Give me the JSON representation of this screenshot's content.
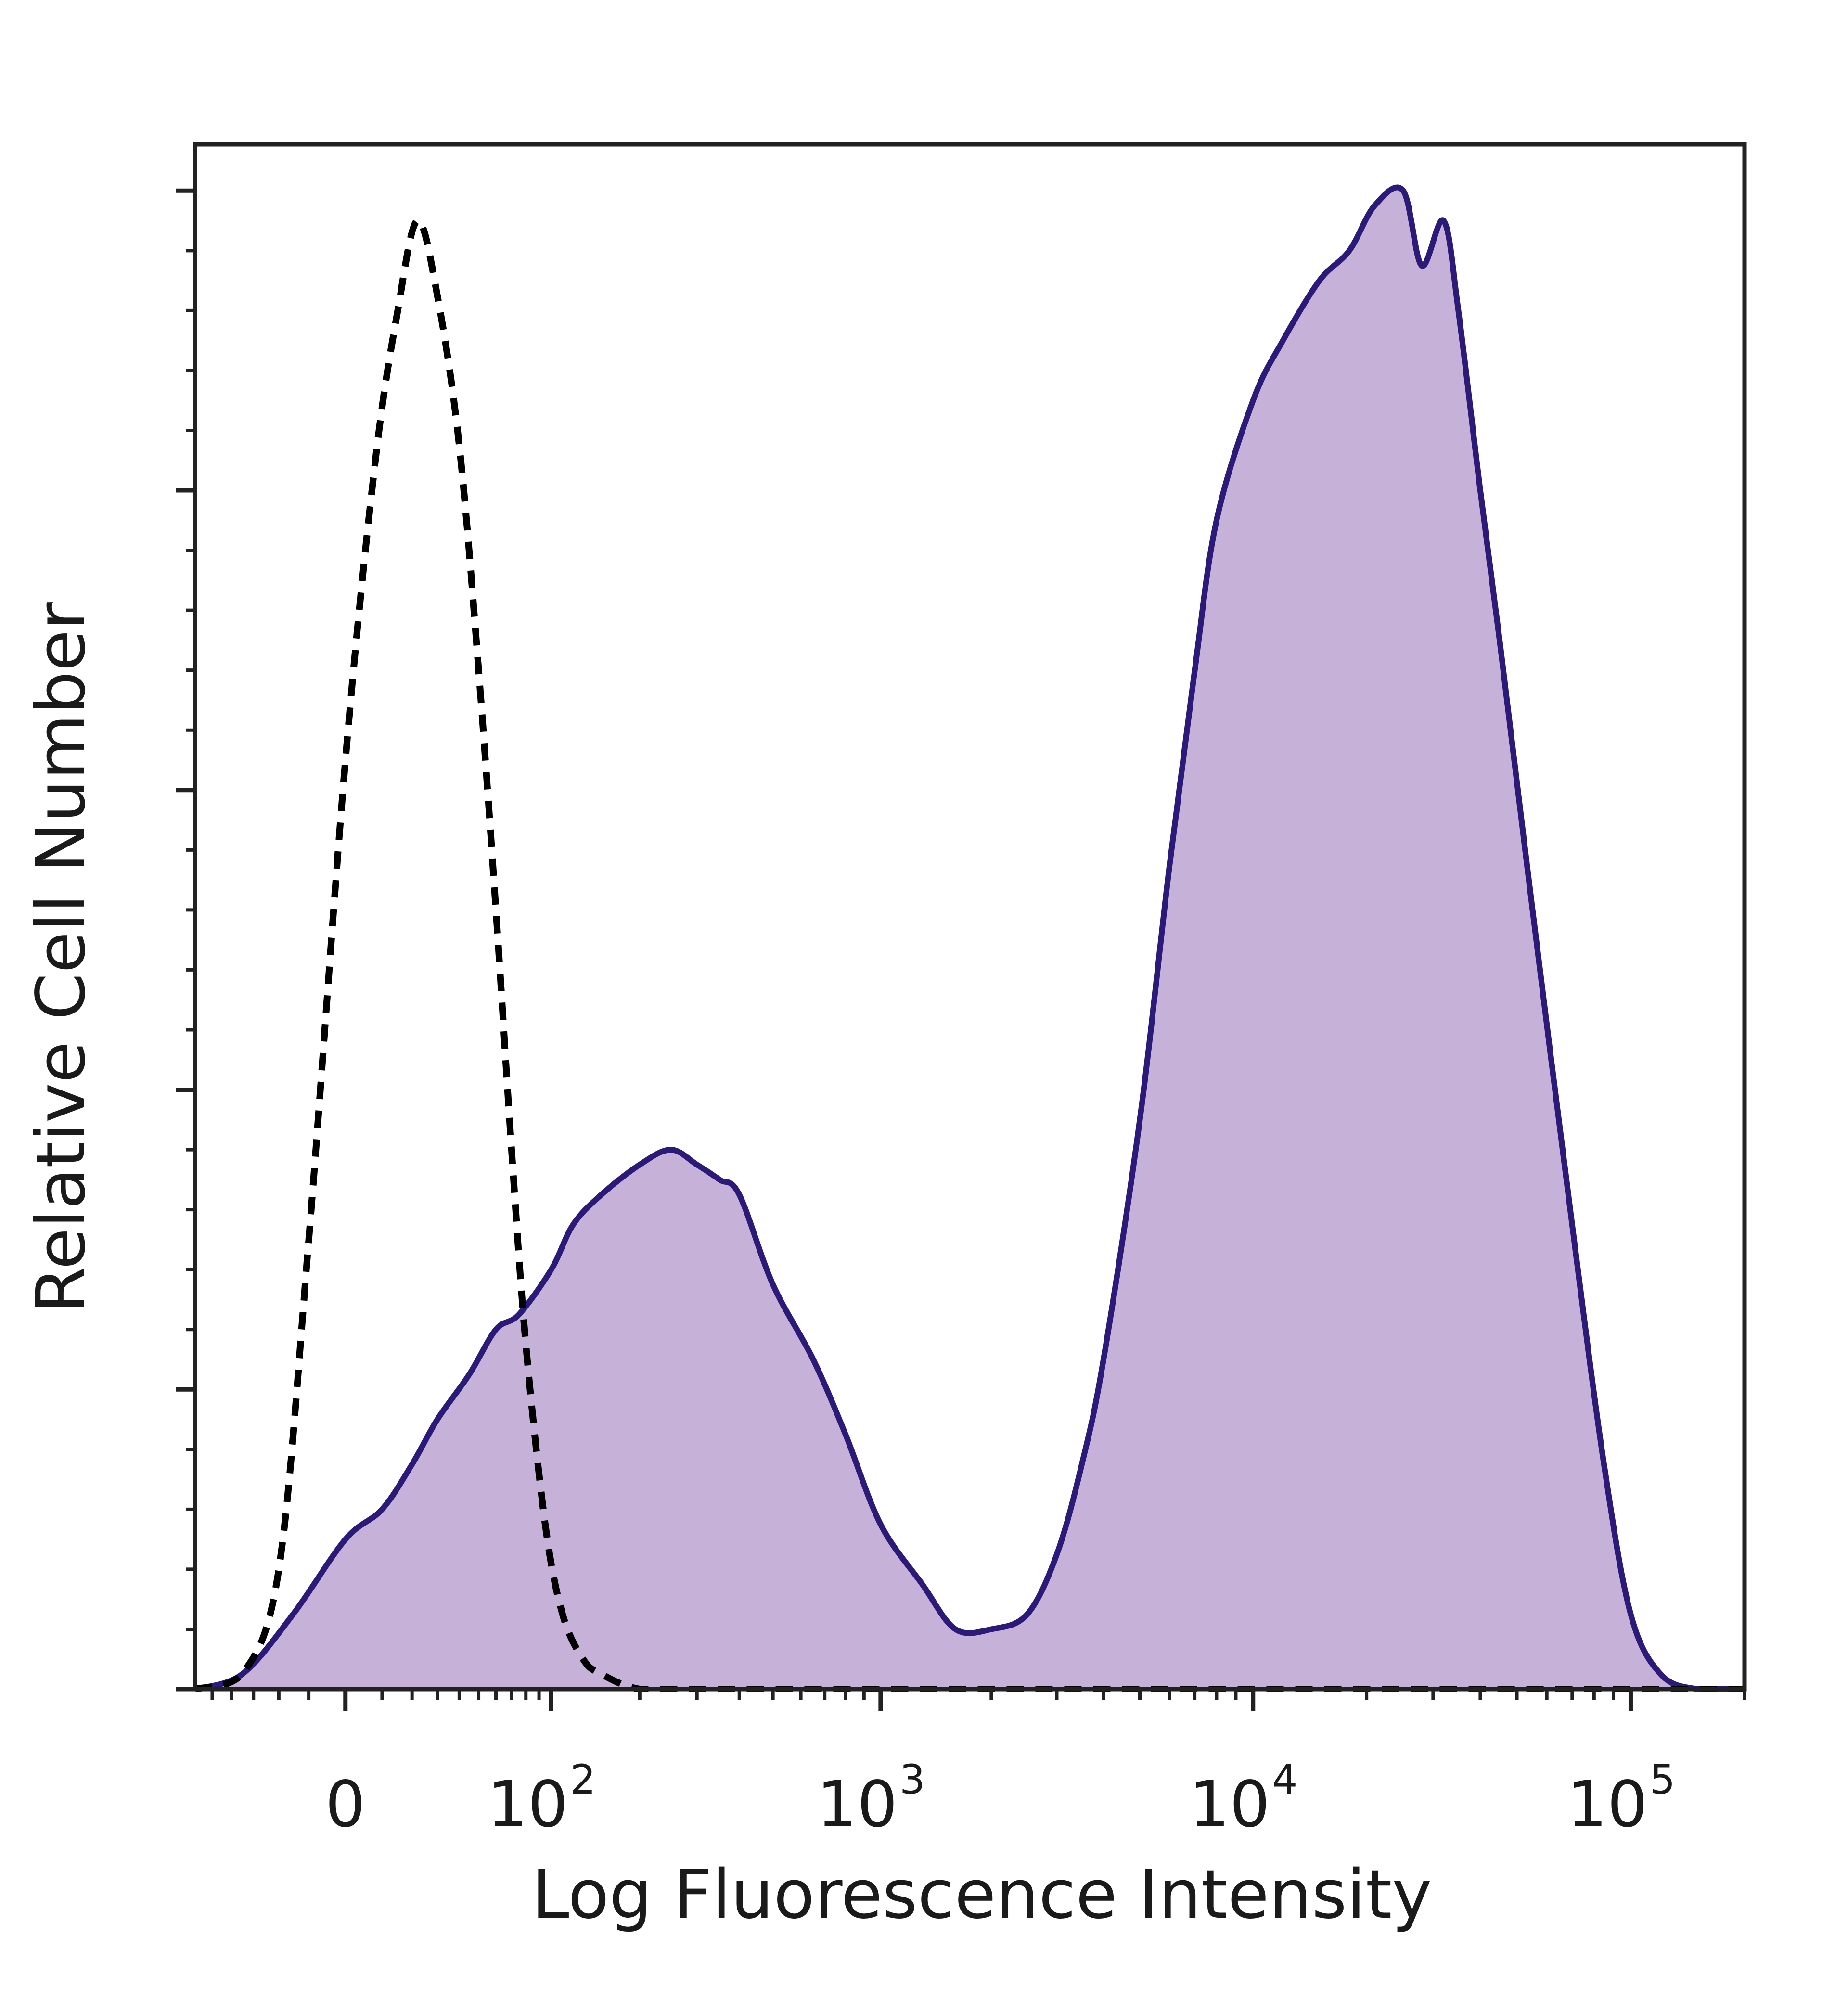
{
  "chart_data": {
    "type": "area",
    "xlabel": "Log Fluorescence Intensity",
    "ylabel": "Relative Cell Number",
    "x_scale": "biexponential",
    "xlim": [
      -60,
      200000
    ],
    "ylim": [
      0,
      1
    ],
    "grid": false,
    "legend": "none",
    "x_ticks": [
      {
        "value": 0,
        "base": "0",
        "exp": ""
      },
      {
        "value": 100,
        "base": "10",
        "exp": "2"
      },
      {
        "value": 1000,
        "base": "10",
        "exp": "3"
      },
      {
        "value": 10000,
        "base": "10",
        "exp": "4"
      },
      {
        "value": 100000,
        "base": "10",
        "exp": "5"
      }
    ],
    "y_ticks": [
      0,
      0.2,
      0.4,
      0.6,
      0.8,
      1.0
    ],
    "colors": {
      "sample_fill": "#c6b1d8",
      "sample_line": "#2b1a78",
      "control_line": "#000000",
      "axis": "#222222"
    },
    "series": [
      {
        "style": "filled-solid",
        "x": [
          -60,
          -35,
          -15,
          0,
          10,
          20,
          30,
          45,
          60,
          75,
          100,
          120,
          150,
          200,
          250,
          300,
          350,
          400,
          500,
          650,
          800,
          1000,
          1300,
          1600,
          2000,
          2500,
          3000,
          3500,
          4000,
          5000,
          6000,
          7000,
          8000,
          10000,
          12000,
          15000,
          18000,
          21000,
          25000,
          28000,
          32000,
          35000,
          40000,
          45000,
          55000,
          70000,
          85000,
          100000,
          120000,
          150000,
          200000
        ],
        "y": [
          0.0,
          0.01,
          0.05,
          0.1,
          0.12,
          0.15,
          0.18,
          0.21,
          0.24,
          0.25,
          0.28,
          0.31,
          0.33,
          0.35,
          0.36,
          0.35,
          0.34,
          0.33,
          0.27,
          0.22,
          0.17,
          0.11,
          0.07,
          0.04,
          0.04,
          0.05,
          0.09,
          0.15,
          0.22,
          0.38,
          0.55,
          0.68,
          0.78,
          0.86,
          0.9,
          0.94,
          0.96,
          0.99,
          1.0,
          0.95,
          0.98,
          0.92,
          0.8,
          0.7,
          0.52,
          0.31,
          0.15,
          0.05,
          0.01,
          0.0,
          0.0
        ]
      },
      {
        "style": "dashed",
        "x": [
          -60,
          -35,
          -20,
          -10,
          0,
          8,
          15,
          22,
          30,
          40,
          50,
          60,
          70,
          80,
          95,
          110,
          130,
          150,
          200,
          300,
          500,
          1000,
          10000,
          200000
        ],
        "y": [
          0.0,
          0.01,
          0.08,
          0.3,
          0.62,
          0.82,
          0.92,
          0.98,
          0.93,
          0.83,
          0.68,
          0.52,
          0.36,
          0.23,
          0.11,
          0.05,
          0.02,
          0.01,
          0.0,
          0.0,
          0.0,
          0.0,
          0.0,
          0.0
        ]
      }
    ]
  }
}
